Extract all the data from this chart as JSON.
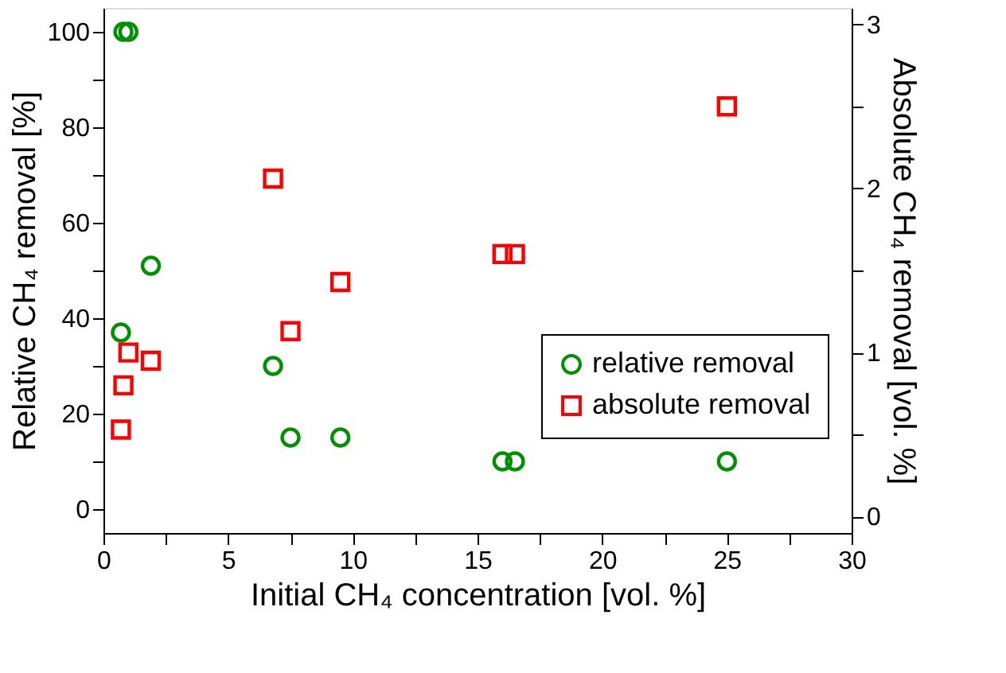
{
  "chart_data": {
    "type": "scatter",
    "xlabel": "Initial CH₄ concentration [vol. %]",
    "ylabel": "Relative CH₄ removal [%]",
    "y2label": "Absolute CH₄ removal [vol. %]",
    "x": [
      0.7,
      0.8,
      1.0,
      1.9,
      6.8,
      7.5,
      9.5,
      16.0,
      16.5,
      25.0
    ],
    "series": [
      {
        "name": "relative removal",
        "color": "#009100",
        "marker": "circle",
        "values": [
          37,
          100,
          100,
          51,
          30,
          15,
          15,
          10,
          10,
          10
        ]
      },
      {
        "name": "absolute removal",
        "color": "#ff0000",
        "marker": "square",
        "axis": "y2",
        "values": [
          0.53,
          0.8,
          1.0,
          0.95,
          2.06,
          1.13,
          1.43,
          1.6,
          1.6,
          2.5
        ]
      }
    ],
    "xlim": [
      0,
      30
    ],
    "xticks": [
      0,
      {
        "value": 2.5,
        "label": null
      },
      5,
      {
        "value": 7.5,
        "label": null
      },
      10,
      {
        "value": 12.5,
        "label": null
      },
      15,
      {
        "value": 17.5,
        "label": null
      },
      20,
      {
        "value": 22.5,
        "label": null
      },
      25,
      {
        "value": 27.5,
        "label": null
      },
      30
    ],
    "ylim": [
      -5,
      105
    ],
    "yticks": [
      0,
      {
        "value": 10,
        "label": null
      },
      20,
      {
        "value": 30,
        "label": null
      },
      40,
      {
        "value": 50,
        "label": null
      },
      60,
      {
        "value": 70,
        "label": null
      },
      80,
      {
        "value": 90,
        "label": null
      },
      100
    ],
    "y2lim": [
      -0.1,
      3.1
    ],
    "y2ticks": [
      0,
      {
        "value": 0.5,
        "label": null
      },
      1,
      {
        "value": 1.5,
        "label": null
      },
      2,
      {
        "value": 2.5,
        "label": null
      },
      3
    ],
    "grid": false,
    "legend": "right"
  }
}
